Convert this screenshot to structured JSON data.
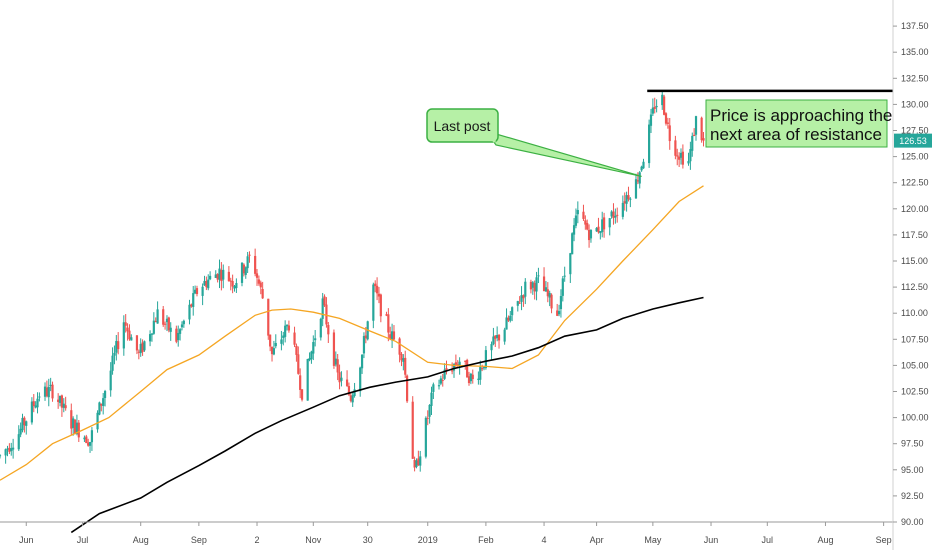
{
  "chart_data": {
    "type": "candlestick",
    "title": "",
    "xlabel": "",
    "ylabel": "",
    "ylim": [
      90.0,
      140.0
    ],
    "yticks": [
      90.0,
      92.5,
      95.0,
      97.5,
      100.0,
      102.5,
      105.0,
      107.5,
      110.0,
      112.5,
      115.0,
      117.5,
      120.0,
      122.5,
      125.0,
      127.5,
      130.0,
      132.5,
      135.0,
      137.5
    ],
    "ytick_labels": [
      "90.00",
      "92.50",
      "95.00",
      "97.50",
      "100.00",
      "102.50",
      "105.00",
      "107.50",
      "110.00",
      "112.50",
      "115.00",
      "117.50",
      "120.00",
      "122.50",
      "125.00",
      "127.50",
      "130.00",
      "132.50",
      "135.00",
      "137.50"
    ],
    "xticks": [
      {
        "label": "Jun",
        "date": "2018-06-01"
      },
      {
        "label": "Jul",
        "date": "2018-07-01"
      },
      {
        "label": "Aug",
        "date": "2018-08-01"
      },
      {
        "label": "Sep",
        "date": "2018-09-01"
      },
      {
        "label": "2",
        "date": "2018-10-02"
      },
      {
        "label": "Nov",
        "date": "2018-11-01"
      },
      {
        "label": "30",
        "date": "2018-11-30"
      },
      {
        "label": "2019",
        "date": "2019-01-01"
      },
      {
        "label": "Feb",
        "date": "2019-02-01"
      },
      {
        "label": "4",
        "date": "2019-03-04"
      },
      {
        "label": "Apr",
        "date": "2019-04-01"
      },
      {
        "label": "May",
        "date": "2019-05-01"
      },
      {
        "label": "Jun",
        "date": "2019-06-01"
      },
      {
        "label": "Jul",
        "date": "2019-07-01"
      },
      {
        "label": "Aug",
        "date": "2019-08-01"
      },
      {
        "label": "Sep",
        "date": "2019-09-01"
      }
    ],
    "xrange": [
      "2018-05-18",
      "2019-09-06"
    ],
    "last_price": 126.53,
    "last_price_label": "126.53",
    "price_path": [
      [
        "2018-05-18",
        96.3
      ],
      [
        "2018-05-28",
        98.5
      ],
      [
        "2018-06-08",
        102.3
      ],
      [
        "2018-06-15",
        102.6
      ],
      [
        "2018-06-25",
        99.5
      ],
      [
        "2018-07-05",
        97.8
      ],
      [
        "2018-07-16",
        104.5
      ],
      [
        "2018-07-23",
        109.3
      ],
      [
        "2018-07-31",
        106.0
      ],
      [
        "2018-08-10",
        110.0
      ],
      [
        "2018-08-20",
        107.5
      ],
      [
        "2018-09-01",
        112.5
      ],
      [
        "2018-09-12",
        114.0
      ],
      [
        "2018-09-20",
        113.0
      ],
      [
        "2018-09-29",
        115.5
      ],
      [
        "2018-10-05",
        111.5
      ],
      [
        "2018-10-10",
        106.0
      ],
      [
        "2018-10-19",
        109.0
      ],
      [
        "2018-10-26",
        102.5
      ],
      [
        "2018-11-06",
        111.0
      ],
      [
        "2018-11-14",
        104.0
      ],
      [
        "2018-11-21",
        102.0
      ],
      [
        "2018-11-27",
        106.0
      ],
      [
        "2018-12-03",
        112.5
      ],
      [
        "2018-12-12",
        108.0
      ],
      [
        "2018-12-19",
        106.0
      ],
      [
        "2018-12-25",
        94.5
      ],
      [
        "2019-01-04",
        102.5
      ],
      [
        "2019-01-11",
        104.5
      ],
      [
        "2019-01-18",
        105.5
      ],
      [
        "2019-01-25",
        103.5
      ],
      [
        "2019-02-05",
        107.0
      ],
      [
        "2019-02-14",
        109.5
      ],
      [
        "2019-02-22",
        112.5
      ],
      [
        "2019-03-01",
        113.0
      ],
      [
        "2019-03-06",
        111.5
      ],
      [
        "2019-03-11",
        110.0
      ],
      [
        "2019-03-18",
        116.5
      ],
      [
        "2019-03-22",
        119.5
      ],
      [
        "2019-03-29",
        117.5
      ],
      [
        "2019-04-10",
        119.5
      ],
      [
        "2019-04-22",
        122.5
      ],
      [
        "2019-04-26",
        125.0
      ],
      [
        "2019-05-02",
        130.0
      ],
      [
        "2019-05-06",
        130.5
      ],
      [
        "2019-05-10",
        127.0
      ],
      [
        "2019-05-14",
        125.5
      ],
      [
        "2019-05-20",
        124.5
      ],
      [
        "2019-05-24",
        128.5
      ],
      [
        "2019-05-28",
        126.53
      ]
    ],
    "series": [
      {
        "kind": "moving-average",
        "color": "#f5a623",
        "points": [
          [
            "2018-05-18",
            94.0
          ],
          [
            "2018-06-01",
            95.5
          ],
          [
            "2018-06-15",
            97.5
          ],
          [
            "2018-07-01",
            98.8
          ],
          [
            "2018-07-15",
            100.0
          ],
          [
            "2018-08-01",
            102.5
          ],
          [
            "2018-08-15",
            104.6
          ],
          [
            "2018-09-01",
            106.0
          ],
          [
            "2018-09-15",
            107.8
          ],
          [
            "2018-10-01",
            109.8
          ],
          [
            "2018-10-10",
            110.3
          ],
          [
            "2018-10-20",
            110.4
          ],
          [
            "2018-11-01",
            110.1
          ],
          [
            "2018-11-15",
            109.5
          ],
          [
            "2018-12-01",
            108.3
          ],
          [
            "2018-12-15",
            107.3
          ],
          [
            "2019-01-01",
            105.3
          ],
          [
            "2019-01-15",
            105.0
          ],
          [
            "2019-02-01",
            104.9
          ],
          [
            "2019-02-15",
            104.7
          ],
          [
            "2019-03-01",
            106.0
          ],
          [
            "2019-03-15",
            109.3
          ],
          [
            "2019-04-01",
            112.3
          ],
          [
            "2019-04-15",
            115.0
          ],
          [
            "2019-05-01",
            118.0
          ],
          [
            "2019-05-15",
            120.7
          ],
          [
            "2019-05-28",
            122.2
          ]
        ]
      },
      {
        "kind": "moving-average",
        "color": "#000000",
        "points": [
          [
            "2018-06-25",
            89.0
          ],
          [
            "2018-07-10",
            90.8
          ],
          [
            "2018-08-01",
            92.3
          ],
          [
            "2018-08-15",
            93.8
          ],
          [
            "2018-09-01",
            95.4
          ],
          [
            "2018-09-15",
            96.8
          ],
          [
            "2018-10-01",
            98.5
          ],
          [
            "2018-10-15",
            99.7
          ],
          [
            "2018-11-01",
            101.0
          ],
          [
            "2018-11-15",
            102.1
          ],
          [
            "2018-12-01",
            102.9
          ],
          [
            "2018-12-15",
            103.4
          ],
          [
            "2019-01-01",
            103.9
          ],
          [
            "2019-01-15",
            104.7
          ],
          [
            "2019-02-01",
            105.4
          ],
          [
            "2019-02-15",
            105.9
          ],
          [
            "2019-03-01",
            106.7
          ],
          [
            "2019-03-15",
            107.8
          ],
          [
            "2019-04-01",
            108.4
          ],
          [
            "2019-04-15",
            109.5
          ],
          [
            "2019-05-01",
            110.4
          ],
          [
            "2019-05-15",
            111.0
          ],
          [
            "2019-05-28",
            111.5
          ]
        ]
      }
    ],
    "resistance_line": {
      "value": 131.3,
      "start": "2019-04-28",
      "end": "2019-09-06",
      "color": "#000000"
    },
    "annotations": [
      {
        "text": "Last post",
        "target_date": "2019-04-25",
        "target_value": 123.1
      },
      {
        "text_line1": "Price is approaching the",
        "text_line2": "next area of resistance"
      }
    ],
    "colors": {
      "up": "#26a69a",
      "down": "#ef5350",
      "callout_fill": "#b6f0a6",
      "callout_border": "#3cb043",
      "price_badge": "#26a69a"
    },
    "grid": false,
    "legend": "none"
  }
}
